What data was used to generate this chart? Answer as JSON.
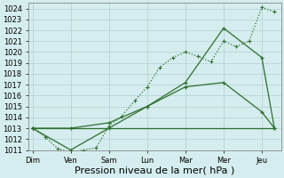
{
  "x_labels": [
    "Dim",
    "Ven",
    "Sam",
    "Lun",
    "Mar",
    "Mer",
    "Jeu"
  ],
  "x_positions": [
    0,
    1,
    2,
    3,
    4,
    5,
    6
  ],
  "line1_detailed": {
    "x": [
      0,
      0.33,
      0.67,
      1.0,
      1.33,
      1.67,
      2.0,
      2.33,
      2.67,
      3.0,
      3.33,
      3.67,
      4.0,
      4.33,
      4.67,
      5.0,
      5.33,
      5.67,
      6.0,
      6.33
    ],
    "y": [
      1013.0,
      1012.2,
      1011.1,
      1010.8,
      1011.0,
      1011.2,
      1013.2,
      1014.1,
      1015.5,
      1016.8,
      1018.6,
      1019.5,
      1020.0,
      1019.6,
      1019.1,
      1021.0,
      1020.5,
      1021.0,
      1024.1,
      1023.7
    ],
    "linestyle": "dotted"
  },
  "line2": {
    "x": [
      0,
      1,
      2,
      3,
      4,
      5,
      6,
      6.33
    ],
    "y": [
      1013.0,
      1011.0,
      1013.0,
      1015.0,
      1017.2,
      1022.2,
      1019.5,
      1013.0
    ],
    "linestyle": "solid"
  },
  "line3": {
    "x": [
      0,
      1,
      2,
      3,
      4,
      5,
      6,
      6.33
    ],
    "y": [
      1013.0,
      1013.0,
      1013.5,
      1015.0,
      1016.8,
      1017.2,
      1014.5,
      1013.0
    ],
    "linestyle": "solid"
  },
  "flat_line": {
    "x": [
      0,
      6.33
    ],
    "y": [
      1013.0,
      1013.0
    ],
    "linestyle": "solid"
  },
  "ylim": [
    1011,
    1024.5
  ],
  "yticks": [
    1011,
    1012,
    1013,
    1014,
    1015,
    1016,
    1017,
    1018,
    1019,
    1020,
    1021,
    1022,
    1023,
    1024
  ],
  "xlim": [
    -0.1,
    6.5
  ],
  "xlabel": "Pression niveau de la mer( hPa )",
  "bg_color": "#d5edee",
  "grid_color": "#b0d0d0",
  "line_color": "#2d6e2d",
  "tick_label_fontsize": 6.0,
  "xlabel_fontsize": 8.0
}
